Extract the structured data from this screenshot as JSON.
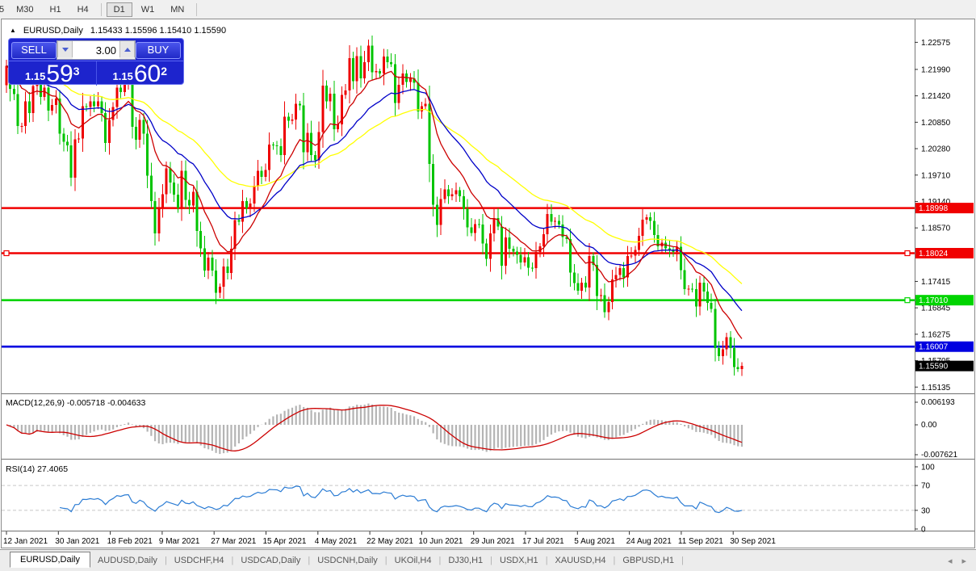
{
  "toolbar": {
    "timeframes": [
      {
        "label": "5",
        "active": false
      },
      {
        "label": "M30",
        "active": false
      },
      {
        "label": "H1",
        "active": false
      },
      {
        "label": "H4",
        "active": false
      },
      {
        "label": "D1",
        "active": true
      },
      {
        "label": "W1",
        "active": false
      },
      {
        "label": "MN",
        "active": false
      }
    ]
  },
  "chart_header": {
    "symbol": "EURUSD,Daily",
    "quote": "1.15433 1.15596 1.15410 1.15590"
  },
  "trade_panel": {
    "sell_label": "SELL",
    "buy_label": "BUY",
    "volume": "3.00",
    "sell_price": {
      "base": "1.15",
      "big": "59",
      "sup": "3"
    },
    "buy_price": {
      "base": "1.15",
      "big": "60",
      "sup": "2"
    }
  },
  "panes": {
    "macd_label": "MACD(12,26,9) -0.005718 -0.004633",
    "rsi_label": "RSI(14) 27.4065"
  },
  "tabs": {
    "items": [
      {
        "label": "EURUSD,Daily",
        "active": true
      },
      {
        "label": "AUDUSD,Daily",
        "active": false
      },
      {
        "label": "USDCHF,H4",
        "active": false
      },
      {
        "label": "USDCAD,Daily",
        "active": false
      },
      {
        "label": "USDCNH,Daily",
        "active": false
      },
      {
        "label": "UKOil,H4",
        "active": false
      },
      {
        "label": "DJ30,H1",
        "active": false
      },
      {
        "label": "USDX,H1",
        "active": false
      },
      {
        "label": "XAUUSD,H4",
        "active": false
      },
      {
        "label": "GBPUSD,H1",
        "active": false
      }
    ]
  },
  "chart_data": [
    {
      "type": "candlestick",
      "symbol": "EURUSD",
      "timeframe": "Daily",
      "title": "EURUSD,Daily",
      "up_color": "#ee0000",
      "down_color": "#00c400",
      "ma_overlays": [
        {
          "period": 12,
          "method": "ema",
          "color": "#cc0000"
        },
        {
          "period": 26,
          "method": "ema",
          "color": "#0000c8"
        },
        {
          "period": 50,
          "method": "ema",
          "color": "#ffff00"
        }
      ],
      "ylim": [
        1.15,
        1.23
      ],
      "y_ticks": [
        "1.22575",
        "1.21990",
        "1.21420",
        "1.20850",
        "1.20280",
        "1.19710",
        "1.19140",
        "1.18570",
        "1.17415",
        "1.16845",
        "1.16275",
        "1.15705",
        "1.15135"
      ],
      "x_labels": [
        "12 Jan 2021",
        "30 Jan 2021",
        "18 Feb 2021",
        "9 Mar 2021",
        "27 Mar 2021",
        "15 Apr 2021",
        "4 May 2021",
        "22 May 2021",
        "10 Jun 2021",
        "29 Jun 2021",
        "17 Jul 2021",
        "5 Aug 2021",
        "24 Aug 2021",
        "11 Sep 2021",
        "30 Sep 2021"
      ],
      "hlines": [
        {
          "price": 1.18998,
          "color": "#f00000",
          "badge": "1.18998",
          "handles": []
        },
        {
          "price": 1.18024,
          "color": "#f00000",
          "badge": "1.18024",
          "handles": [
            8,
            1124
          ]
        },
        {
          "price": 1.1701,
          "color": "#00d400",
          "badge": "1.17010",
          "handles": [
            1124
          ]
        },
        {
          "price": 1.16007,
          "color": "#0000e0",
          "badge": "1.16007",
          "handles": []
        }
      ],
      "last_price_badge": {
        "text": "1.15590",
        "color": "#000000"
      },
      "first_open": 1.2165,
      "closes": [
        1.2207,
        1.2157,
        1.2146,
        1.2077,
        1.2077,
        1.213,
        1.2105,
        1.2163,
        1.217,
        1.214,
        1.216,
        1.211,
        1.2122,
        1.2136,
        1.206,
        1.2043,
        1.2035,
        1.1965,
        1.2048,
        1.205,
        1.212,
        1.2118,
        1.213,
        1.212,
        1.213,
        1.2105,
        1.204,
        1.209,
        1.2118,
        1.216,
        1.215,
        1.217,
        1.2175,
        1.2075,
        1.2047,
        1.209,
        1.206,
        1.197,
        1.1915,
        1.1845,
        1.19,
        1.193,
        1.1985,
        1.1955,
        1.1929,
        1.19,
        1.198,
        1.1917,
        1.1905,
        1.1935,
        1.185,
        1.1813,
        1.1765,
        1.1793,
        1.1765,
        1.1717,
        1.173,
        1.1774,
        1.176,
        1.1812,
        1.1874,
        1.187,
        1.1915,
        1.19,
        1.191,
        1.1948,
        1.198,
        1.1967,
        1.1982,
        1.2037,
        1.2035,
        1.2033,
        1.2014,
        1.2097,
        1.2088,
        1.2091,
        1.2125,
        1.2121,
        1.202,
        1.2062,
        1.2014,
        1.2003,
        1.2064,
        1.2164,
        1.213,
        1.2147,
        1.207,
        1.208,
        1.2144,
        1.2154,
        1.2223,
        1.2174,
        1.2228,
        1.218,
        1.2215,
        1.225,
        1.2193,
        1.2195,
        1.219,
        1.2227,
        1.2215,
        1.221,
        1.2127,
        1.2166,
        1.219,
        1.2172,
        1.218,
        1.217,
        1.2108,
        1.212,
        1.2125,
        1.1995,
        1.1907,
        1.1863,
        1.1919,
        1.194,
        1.1925,
        1.193,
        1.1938,
        1.1925,
        1.1898,
        1.1858,
        1.1846,
        1.1865,
        1.1864,
        1.1823,
        1.179,
        1.1845,
        1.1878,
        1.186,
        1.1775,
        1.1836,
        1.1812,
        1.1806,
        1.1799,
        1.1782,
        1.1794,
        1.1771,
        1.177,
        1.1805,
        1.1817,
        1.1843,
        1.1887,
        1.187,
        1.1872,
        1.1864,
        1.1837,
        1.1833,
        1.1761,
        1.1738,
        1.1721,
        1.1739,
        1.1728,
        1.1796,
        1.1777,
        1.171,
        1.1712,
        1.1675,
        1.1697,
        1.1746,
        1.1755,
        1.177,
        1.175,
        1.1796,
        1.1797,
        1.1809,
        1.184,
        1.1875,
        1.188,
        1.1872,
        1.1842,
        1.1817,
        1.1825,
        1.1813,
        1.181,
        1.1805,
        1.1816,
        1.1766,
        1.1725,
        1.1726,
        1.1725,
        1.1687,
        1.1739,
        1.172,
        1.1695,
        1.1682,
        1.1598,
        1.158,
        1.1595,
        1.1621,
        1.1598,
        1.1557,
        1.1552,
        1.1559
      ]
    },
    {
      "type": "macd",
      "params": "12,26,9",
      "histogram_color": "#b4b4b4",
      "signal_color": "#cc0000",
      "current_values": [
        -0.005718,
        -0.004633
      ],
      "ticks": [
        {
          "label": "0.006193",
          "value": 0.006193
        },
        {
          "label": "0.00",
          "value": 0
        },
        {
          "label": "-0.007621",
          "value": -0.007621
        }
      ]
    },
    {
      "type": "rsi",
      "period": 14,
      "current_value": 27.4065,
      "line_color": "#2b7cd4",
      "levels": [
        70,
        30
      ],
      "ticks": [
        "100",
        "70",
        "30",
        "0"
      ]
    }
  ]
}
